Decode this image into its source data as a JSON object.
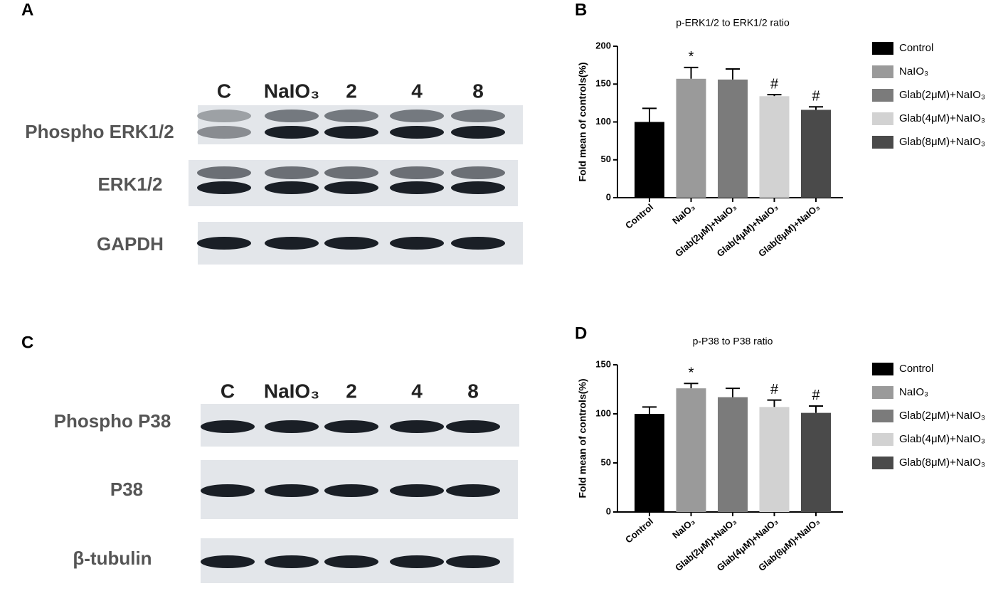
{
  "panels": [
    "A",
    "B",
    "C",
    "D"
  ],
  "blots": [
    {
      "lanes": [
        "C",
        "NaIO₃",
        "2",
        "4",
        "8"
      ],
      "rows": [
        "Phospho ERK1/2",
        "ERK1/2",
        "GAPDH"
      ]
    },
    {
      "lanes": [
        "C",
        "NaIO₃",
        "2",
        "4",
        "8"
      ],
      "rows": [
        "Phospho P38",
        "P38",
        "β-tubulin"
      ]
    }
  ],
  "chart_data": [
    {
      "type": "bar",
      "title": "p-ERK1/2 to ERK1/2 ratio",
      "y_label": "Fold mean of controls(%)",
      "categories": [
        "Control",
        "NaIO₃",
        "Glab(2μM)+NaIO₃",
        "Glab(4μM)+NaIO₃",
        "Glab(8μM)+NaIO₃"
      ],
      "values": [
        100,
        157,
        156,
        134,
        116
      ],
      "errors": [
        18,
        15,
        14,
        2,
        4
      ],
      "annotations": [
        null,
        "*",
        null,
        "#",
        "#"
      ],
      "colors": [
        "#000000",
        "#9a9a9a",
        "#7b7b7b",
        "#d2d2d2",
        "#4a4a4a"
      ],
      "ylim": [
        0,
        200
      ],
      "yticks": [
        0,
        50,
        100,
        150,
        200
      ],
      "legend": "right"
    },
    {
      "type": "bar",
      "title": "p-P38 to P38 ratio",
      "y_label": "Fold mean of controls(%)",
      "categories": [
        "Control",
        "NaIO₃",
        "Glab(2μM)+NaIO₃",
        "Glab(4μM)+NaIO₃",
        "Glab(8μM)+NaIO₃"
      ],
      "values": [
        100,
        126,
        117,
        107,
        101
      ],
      "errors": [
        7,
        5,
        9,
        7,
        7
      ],
      "annotations": [
        null,
        "*",
        null,
        "#",
        "#"
      ],
      "colors": [
        "#000000",
        "#9a9a9a",
        "#7b7b7b",
        "#d2d2d2",
        "#4a4a4a"
      ],
      "ylim": [
        0,
        150
      ],
      "yticks": [
        0,
        50,
        100,
        150
      ],
      "legend": "right"
    }
  ]
}
